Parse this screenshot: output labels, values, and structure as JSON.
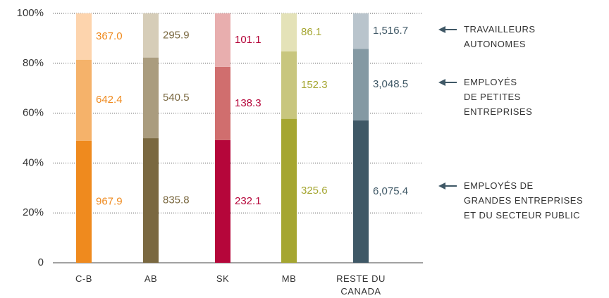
{
  "chart_data": {
    "type": "bar",
    "stacked": "percent",
    "categories": [
      "C-B",
      "AB",
      "SK",
      "MB",
      "RESTE DU\nCANADA"
    ],
    "series": [
      {
        "name": "EMPLOYÉS DE\nGRANDES ENTREPRISES\nET DU SECTEUR PUBLIC",
        "colors": [
          "#ef8a1e",
          "#7a6840",
          "#b5063a",
          "#a5a631",
          "#3f5866"
        ],
        "values": [
          967.9,
          835.8,
          232.1,
          325.6,
          6075.4
        ],
        "value_labels": [
          "967.9",
          "835.8",
          "232.1",
          "325.6",
          "6,075.4"
        ]
      },
      {
        "name": "EMPLOYÉS\nDE PETITES\nENTREPRISES",
        "colors": [
          "#f5b26a",
          "#aa9c7e",
          "#d06e6e",
          "#c8c67e",
          "#8499a3"
        ],
        "values": [
          642.4,
          540.5,
          138.3,
          152.3,
          3048.5
        ],
        "value_labels": [
          "642.4",
          "540.5",
          "138.3",
          "152.3",
          "3,048.5"
        ]
      },
      {
        "name": "TRAVAILLEURS\nAUTONOMES",
        "colors": [
          "#fdd4ad",
          "#d6cdb8",
          "#e8aeae",
          "#e4e2b8",
          "#b9c4cc"
        ],
        "values": [
          367.0,
          295.9,
          101.1,
          86.1,
          1516.7
        ],
        "value_labels": [
          "367.0",
          "295.9",
          "101.1",
          "86.1",
          "1,516.7"
        ]
      }
    ],
    "ylim": [
      0,
      100
    ],
    "yticks": [
      0,
      {
        "value": 20,
        "label": "20%"
      },
      {
        "value": 40,
        "label": "40%"
      },
      {
        "value": 60,
        "label": "60%"
      },
      {
        "value": 80,
        "label": "80%"
      },
      {
        "value": 100,
        "label": "100%"
      }
    ],
    "grid": true
  }
}
